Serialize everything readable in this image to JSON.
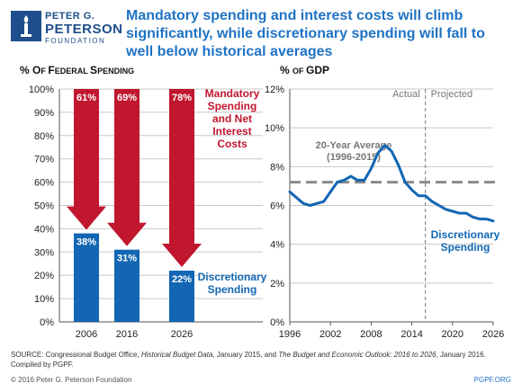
{
  "logo": {
    "line1": "PETER G.",
    "line2": "PETERSON",
    "line3": "FOUNDATION",
    "colors": {
      "brand": "#1f4e8c"
    }
  },
  "headline": "Mandatory spending and interest costs will climb significantly, while discretionary spending will fall to well below historical averages",
  "colors": {
    "red": "#c0162e",
    "blue": "#1266b3",
    "grid": "#c8c8c8",
    "avg": "#8a8a8a",
    "headline": "#1f73c4"
  },
  "chart_data": [
    {
      "type": "bar",
      "title": "% OF FEDERAL SPENDING",
      "categories": [
        "2006",
        "2016",
        "2026"
      ],
      "ylim": [
        0,
        100
      ],
      "yticks": [
        0,
        10,
        20,
        30,
        40,
        50,
        60,
        70,
        80,
        90,
        100
      ],
      "ytick_labels": [
        "0%",
        "10%",
        "20%",
        "30%",
        "40%",
        "50%",
        "60%",
        "70%",
        "80%",
        "90%",
        "100%"
      ],
      "grid": true,
      "series": [
        {
          "name": "Mandatory Spending and Net Interest Costs",
          "values": [
            61,
            69,
            78
          ],
          "labels": [
            "61%",
            "69%",
            "78%"
          ],
          "color": "#c0162e"
        },
        {
          "name": "Discretionary Spending",
          "values": [
            38,
            31,
            22
          ],
          "labels": [
            "38%",
            "31%",
            "22%"
          ],
          "color": "#1266b3"
        }
      ],
      "legend_lines": {
        "mandatory": [
          "Mandatory",
          "Spending",
          "and Net",
          "Interest",
          "Costs"
        ],
        "discretionary": [
          "Discretionary",
          "Spending"
        ]
      }
    },
    {
      "type": "line",
      "title": "% OF GDP",
      "xlim": [
        1996,
        2026
      ],
      "ylim": [
        0,
        12
      ],
      "xticks": [
        1996,
        2002,
        2008,
        2014,
        2020,
        2026
      ],
      "yticks": [
        0,
        2,
        4,
        6,
        8,
        10,
        12
      ],
      "ytick_labels": [
        "0%",
        "2%",
        "4%",
        "6%",
        "8%",
        "10%",
        "12%"
      ],
      "grid": true,
      "divider_x": 2016,
      "divider_labels": {
        "left": "Actual",
        "right": "Projected"
      },
      "average": {
        "value": 7.2,
        "label_lines": [
          "20-Year Average",
          "(1996-2015)"
        ]
      },
      "series": [
        {
          "name": "Discretionary Spending",
          "label_lines": [
            "Discretionary",
            "Spending"
          ],
          "color": "#1266b3",
          "x": [
            1996,
            1997,
            1998,
            1999,
            2000,
            2001,
            2002,
            2003,
            2004,
            2005,
            2006,
            2007,
            2008,
            2009,
            2010,
            2011,
            2012,
            2013,
            2014,
            2015,
            2016,
            2017,
            2018,
            2019,
            2020,
            2021,
            2022,
            2023,
            2024,
            2025,
            2026
          ],
          "y": [
            6.7,
            6.4,
            6.1,
            6.0,
            6.1,
            6.2,
            6.7,
            7.2,
            7.3,
            7.5,
            7.3,
            7.3,
            7.9,
            8.7,
            9.1,
            8.8,
            8.1,
            7.2,
            6.8,
            6.5,
            6.5,
            6.2,
            6.0,
            5.8,
            5.7,
            5.6,
            5.6,
            5.4,
            5.3,
            5.3,
            5.2
          ]
        }
      ]
    }
  ],
  "source": {
    "part1": "SOURCE: Congressional Budget Office, ",
    "ital1": "Historical Budget Data",
    "part2": ", January 2015, and ",
    "ital2": "The Budget and Economic Outlook: 2016 to 2026",
    "part3": ", January 2016.",
    "line2": "Compiled by PGPF."
  },
  "footer": {
    "copyright": "© 2016 Peter G. Peterson Foundation",
    "url": "PGPF.ORG"
  }
}
